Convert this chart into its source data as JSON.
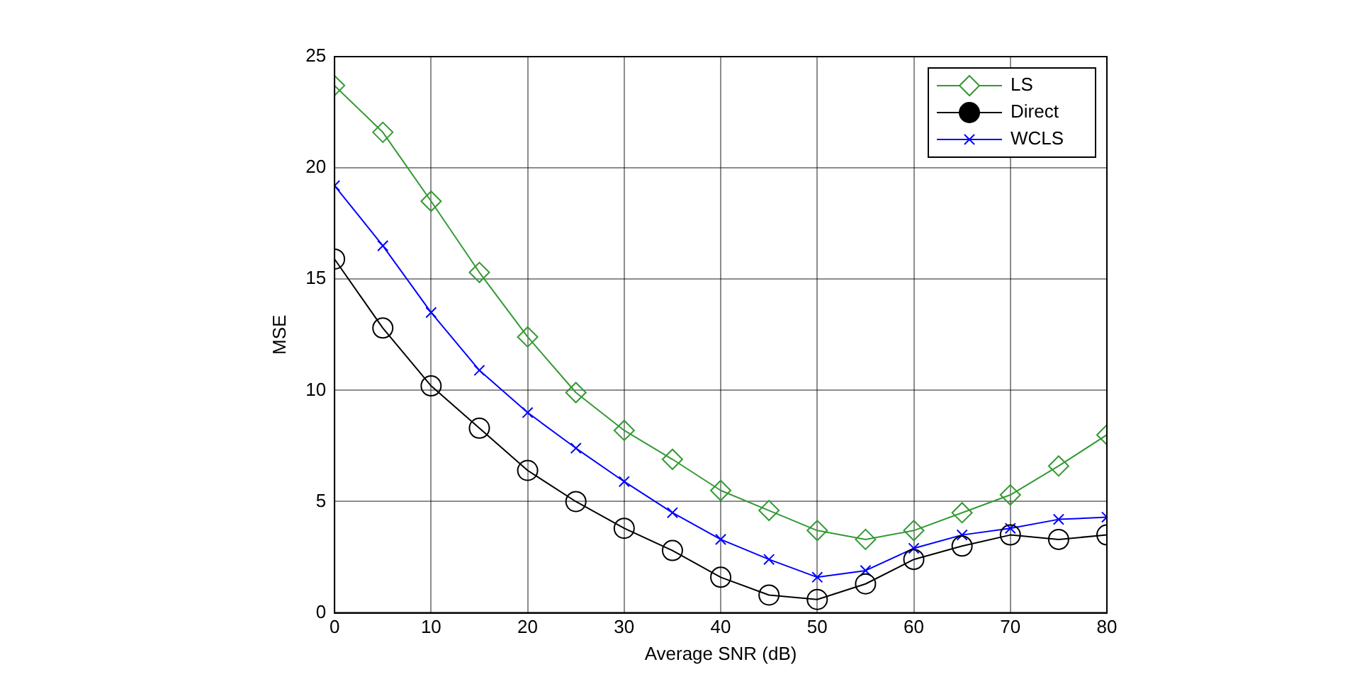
{
  "chart_data": {
    "type": "line",
    "xlabel": "Average SNR (dB)",
    "ylabel": "MSE",
    "x": [
      0,
      5,
      10,
      15,
      20,
      25,
      30,
      35,
      40,
      45,
      50,
      55,
      60,
      65,
      70,
      75,
      80
    ],
    "series": [
      {
        "name": "LS",
        "color": "#339933",
        "marker": "diamond",
        "values": [
          23.7,
          21.6,
          18.5,
          15.3,
          12.4,
          9.9,
          8.2,
          6.9,
          5.5,
          4.6,
          3.7,
          3.3,
          3.7,
          4.5,
          5.3,
          6.6,
          8.0
        ]
      },
      {
        "name": "Direct",
        "color": "#000000",
        "marker": "circle",
        "values": [
          15.9,
          12.8,
          10.2,
          8.3,
          6.4,
          5.0,
          3.8,
          2.8,
          1.6,
          0.8,
          0.6,
          1.3,
          2.4,
          3.0,
          3.5,
          3.3,
          3.5
        ]
      },
      {
        "name": "WCLS",
        "color": "#0000ff",
        "marker": "cross",
        "values": [
          19.2,
          16.5,
          13.5,
          10.9,
          9.0,
          7.4,
          5.9,
          4.5,
          3.3,
          2.4,
          1.6,
          1.9,
          2.9,
          3.5,
          3.8,
          4.2,
          4.3
        ]
      }
    ],
    "xlim": [
      0,
      80
    ],
    "xticks": [
      0,
      10,
      20,
      30,
      40,
      50,
      60,
      70,
      80
    ],
    "ylim": [
      0,
      25
    ],
    "yticks": [
      0,
      5,
      10,
      15,
      20,
      25
    ],
    "grid": true,
    "legend": "top right",
    "line_style": "solid"
  }
}
